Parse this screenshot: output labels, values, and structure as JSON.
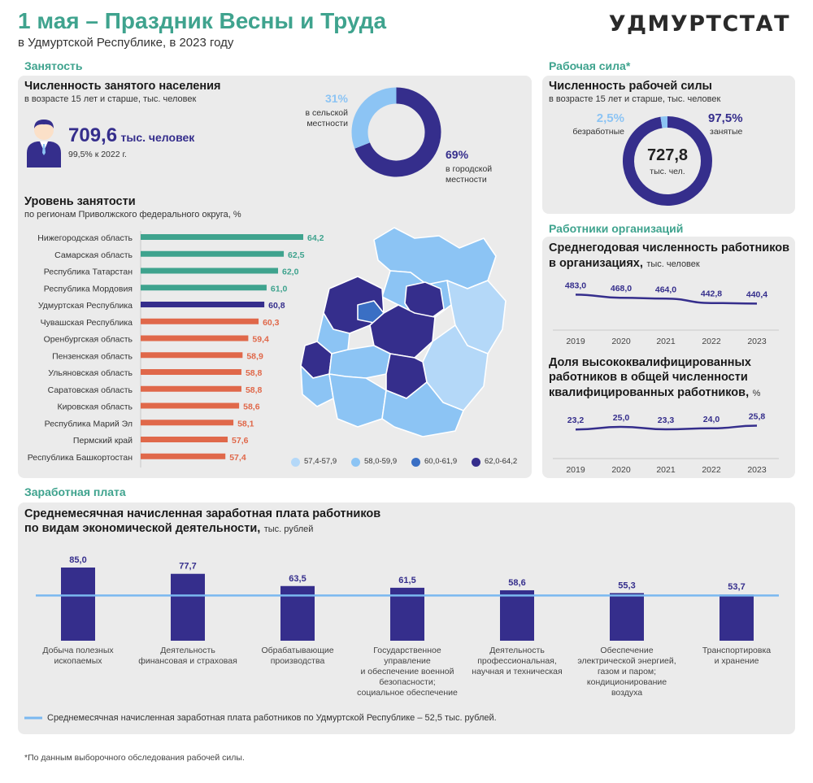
{
  "header": {
    "title": "1 мая – Праздник Весны и Труда",
    "subtitle": "в Удмуртской Республике, в 2023 году",
    "brand": "УДМУРТСТАТ"
  },
  "colors": {
    "teal": "#3fa38e",
    "orange": "#e0684a",
    "purple": "#352e8c",
    "light_blue": "#8cc4f4",
    "lighter_blue": "#b4d8f8",
    "panel_bg": "#ebebeb"
  },
  "employment": {
    "section_label": "Занятость",
    "panel_title": "Численность занятого населения",
    "panel_subtitle": "в возрасте 15 лет и старше, тыс. человек",
    "person_icon": "person-icon",
    "value": "709,6",
    "value_unit": "тыс. человек",
    "change": "99,5% к 2022 г.",
    "donut": {
      "rural_percent_label": "31%",
      "rural_label_1": "в сельской",
      "rural_label_2": "местности",
      "urban_percent_label": "69%",
      "urban_label_1": "в городской",
      "urban_label_2": "местности"
    },
    "level_title": "Уровень занятости",
    "level_subtitle": "по регионам Приволжского федерального округа, %"
  },
  "labor_force": {
    "section_label": "Рабочая сила*",
    "panel_title": "Численность рабочей силы",
    "panel_subtitle": "в возрасте 15 лет и старше, тыс. человек",
    "unemployed_percent_label": "2,5%",
    "unemployed_label": "безработные",
    "employed_percent_label": "97,5%",
    "employed_label": "занятые",
    "total": "727,8",
    "total_unit": "тыс. чел."
  },
  "workers": {
    "section_label": "Работники организаций",
    "avg_title_1": "Среднегодовая численность работников",
    "avg_title_2": "в организациях,",
    "avg_unit": "тыс. человек",
    "hq_title_1": "Доля высококвалифицированных",
    "hq_title_2": "работников в общей численности",
    "hq_title_3": "квалифицированных работников,",
    "hq_unit": "%"
  },
  "wages": {
    "section_label": "Заработная плата",
    "title_1": "Среднемесячная начисленная заработная плата работников",
    "title_2": "по видам экономической деятельности,",
    "unit": "тыс. рублей",
    "legend_text": "Среднемесячная начисленная заработная плата работников по Удмуртской Республике – 52,5 тыс. рублей."
  },
  "footnote": "*По данным выборочного обследования рабочей силы.",
  "map_legend": [
    {
      "label": "57,4-57,9",
      "color": "#b4d8f8"
    },
    {
      "label": "58,0-59,9",
      "color": "#8cc4f4"
    },
    {
      "label": "60,0-61,9",
      "color": "#3a6fc4"
    },
    {
      "label": "62,0-64,2",
      "color": "#352e8c"
    }
  ],
  "chart_data": [
    {
      "type": "pie",
      "title": "Численность занятого населения",
      "categories": [
        "в сельской местности",
        "в городской местности"
      ],
      "values": [
        31,
        69
      ],
      "colors": [
        "#8cc4f4",
        "#352e8c"
      ]
    },
    {
      "type": "pie",
      "title": "Численность рабочей силы",
      "categories": [
        "безработные",
        "занятые"
      ],
      "values": [
        2.5,
        97.5
      ],
      "colors": [
        "#8cc4f4",
        "#352e8c"
      ]
    },
    {
      "type": "bar",
      "orientation": "horizontal",
      "title": "Уровень занятости",
      "categories": [
        "Нижегородская область",
        "Самарская область",
        "Республика Татарстан",
        "Республика Мордовия",
        "Удмуртская Республика",
        "Чувашская Республика",
        "Оренбургская область",
        "Пензенская область",
        "Ульяновская область",
        "Саратовская область",
        "Кировская область",
        "Республика Марий Эл",
        "Пермский край",
        "Республика Башкортостан"
      ],
      "values": [
        64.2,
        62.5,
        62.0,
        61.0,
        60.8,
        60.3,
        59.4,
        58.9,
        58.8,
        58.8,
        58.6,
        58.1,
        57.6,
        57.4
      ],
      "value_labels": [
        "64,2",
        "62,5",
        "62,0",
        "61,0",
        "60,8",
        "60,3",
        "59,4",
        "58,9",
        "58,8",
        "58,8",
        "58,6",
        "58,1",
        "57,6",
        "57,4"
      ],
      "colors": [
        "#3fa38e",
        "#3fa38e",
        "#3fa38e",
        "#3fa38e",
        "#352e8c",
        "#e0684a",
        "#e0684a",
        "#e0684a",
        "#e0684a",
        "#e0684a",
        "#e0684a",
        "#e0684a",
        "#e0684a",
        "#e0684a"
      ]
    },
    {
      "type": "line",
      "title": "Среднегодовая численность работников в организациях",
      "x": [
        "2019",
        "2020",
        "2021",
        "2022",
        "2023"
      ],
      "values": [
        483.0,
        468.0,
        464.0,
        442.8,
        440.4
      ],
      "value_labels": [
        "483,0",
        "468,0",
        "464,0",
        "442,8",
        "440,4"
      ],
      "color": "#352e8c"
    },
    {
      "type": "line",
      "title": "Доля высококвалифицированных работников в общей численности квалифицированных работников",
      "x": [
        "2019",
        "2020",
        "2021",
        "2022",
        "2023"
      ],
      "values": [
        23.2,
        25.0,
        23.3,
        24.0,
        25.8
      ],
      "value_labels": [
        "23,2",
        "25,0",
        "23,3",
        "24,0",
        "25,8"
      ],
      "color": "#352e8c"
    },
    {
      "type": "bar",
      "title": "Среднемесячная начисленная заработная плата работников по видам экономической деятельности",
      "categories": [
        [
          "Добыча полезных",
          "ископаемых"
        ],
        [
          "Деятельность",
          "финансовая и страховая"
        ],
        [
          "Обрабатывающие",
          "производства"
        ],
        [
          "Государственное",
          "управление",
          "и обеспечение военной",
          "безопасности;",
          "социальное обеспечение"
        ],
        [
          "Деятельность",
          "профессиональная,",
          "научная и техническая"
        ],
        [
          "Обеспечение",
          "электрической энергией,",
          "газом и паром;",
          "кондиционирование",
          "воздуха"
        ],
        [
          "Транспортировка",
          "и хранение"
        ]
      ],
      "values": [
        85.0,
        77.7,
        63.5,
        61.5,
        58.6,
        55.3,
        53.7
      ],
      "value_labels": [
        "85,0",
        "77,7",
        "63,5",
        "61,5",
        "58,6",
        "55,3",
        "53,7"
      ],
      "reference_value": 52.5,
      "color": "#352e8c",
      "reference_color": "#7ab8f0"
    }
  ]
}
